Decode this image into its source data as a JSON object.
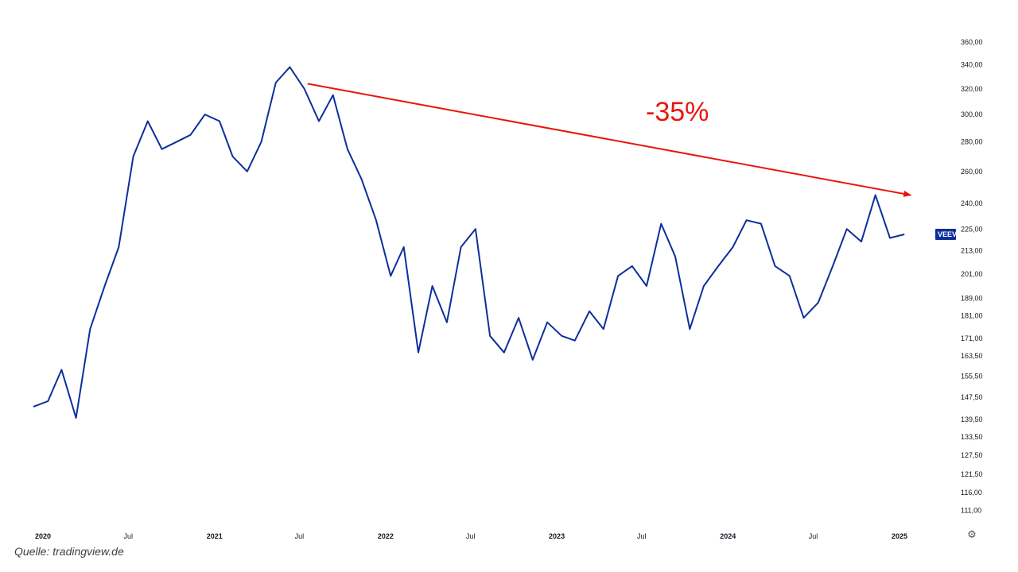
{
  "chart_data": {
    "type": "line",
    "title": "",
    "series": [
      {
        "name": "",
        "x": [
          "2020-01",
          "2020-02",
          "2020-03",
          "2020-04",
          "2020-05",
          "2020-06",
          "2020-07",
          "2020-08",
          "2020-09",
          "2020-10",
          "2020-11",
          "2020-12",
          "2021-01",
          "2021-02",
          "2021-03",
          "2021-04",
          "2021-05",
          "2021-06",
          "2021-07",
          "2021-08",
          "2021-09",
          "2021-10",
          "2021-11",
          "2021-12",
          "2022-01",
          "2022-02",
          "2022-03",
          "2022-04",
          "2022-05",
          "2022-06",
          "2022-07",
          "2022-08",
          "2022-09",
          "2022-10",
          "2022-11",
          "2022-12",
          "2023-01",
          "2023-02",
          "2023-03",
          "2023-04",
          "2023-05",
          "2023-06",
          "2023-07",
          "2023-08",
          "2023-09",
          "2023-10",
          "2023-11",
          "2023-12",
          "2024-01",
          "2024-02",
          "2024-03",
          "2024-04",
          "2024-05",
          "2024-06",
          "2024-07",
          "2024-08",
          "2024-09",
          "2024-10",
          "2024-11",
          "2024-12",
          "2025-01",
          "2025-02"
        ],
        "values": [
          144,
          146,
          158,
          140,
          175,
          195,
          215,
          270,
          295,
          275,
          280,
          285,
          300,
          295,
          270,
          260,
          280,
          325,
          338,
          320,
          295,
          315,
          275,
          255,
          230,
          200,
          215,
          165,
          195,
          178,
          215,
          225,
          172,
          165,
          180,
          162,
          178,
          172,
          170,
          183,
          175,
          200,
          205,
          195,
          228,
          210,
          175,
          195,
          205,
          215,
          230,
          228,
          205,
          200,
          180,
          187,
          205,
          225,
          218,
          245,
          220,
          222
        ]
      }
    ],
    "last_label": "VEEV",
    "last_value": 222,
    "y_scale": "log",
    "ylim": [
      108,
      362
    ],
    "yticks": [
      "360,00",
      "340,00",
      "320,00",
      "300,00",
      "280,00",
      "260,00",
      "240,00",
      "225,00",
      "213,00",
      "201,00",
      "189,00",
      "181,00",
      "171,00",
      "163,50",
      "155,50",
      "147,50",
      "139,50",
      "133,50",
      "127,50",
      "121,50",
      "116,00",
      "111,00"
    ],
    "xticks": [
      "2020",
      "Jul",
      "2021",
      "Jul",
      "2022",
      "Jul",
      "2023",
      "Jul",
      "2024",
      "Jul",
      "2025"
    ],
    "annotation": {
      "text": "-35%",
      "from": {
        "date": "2021-08",
        "value": 340
      },
      "to": {
        "date": "2025-02",
        "value": 245
      }
    },
    "grid": false,
    "colors": {
      "line": "#0d2f9b",
      "annotation": "#e8160c",
      "badge": "#0d2f9b",
      "axis_text": "#131722"
    }
  },
  "footer": {
    "source": "Quelle: tradingview.de"
  },
  "icons": {
    "settings": "gear-icon"
  }
}
